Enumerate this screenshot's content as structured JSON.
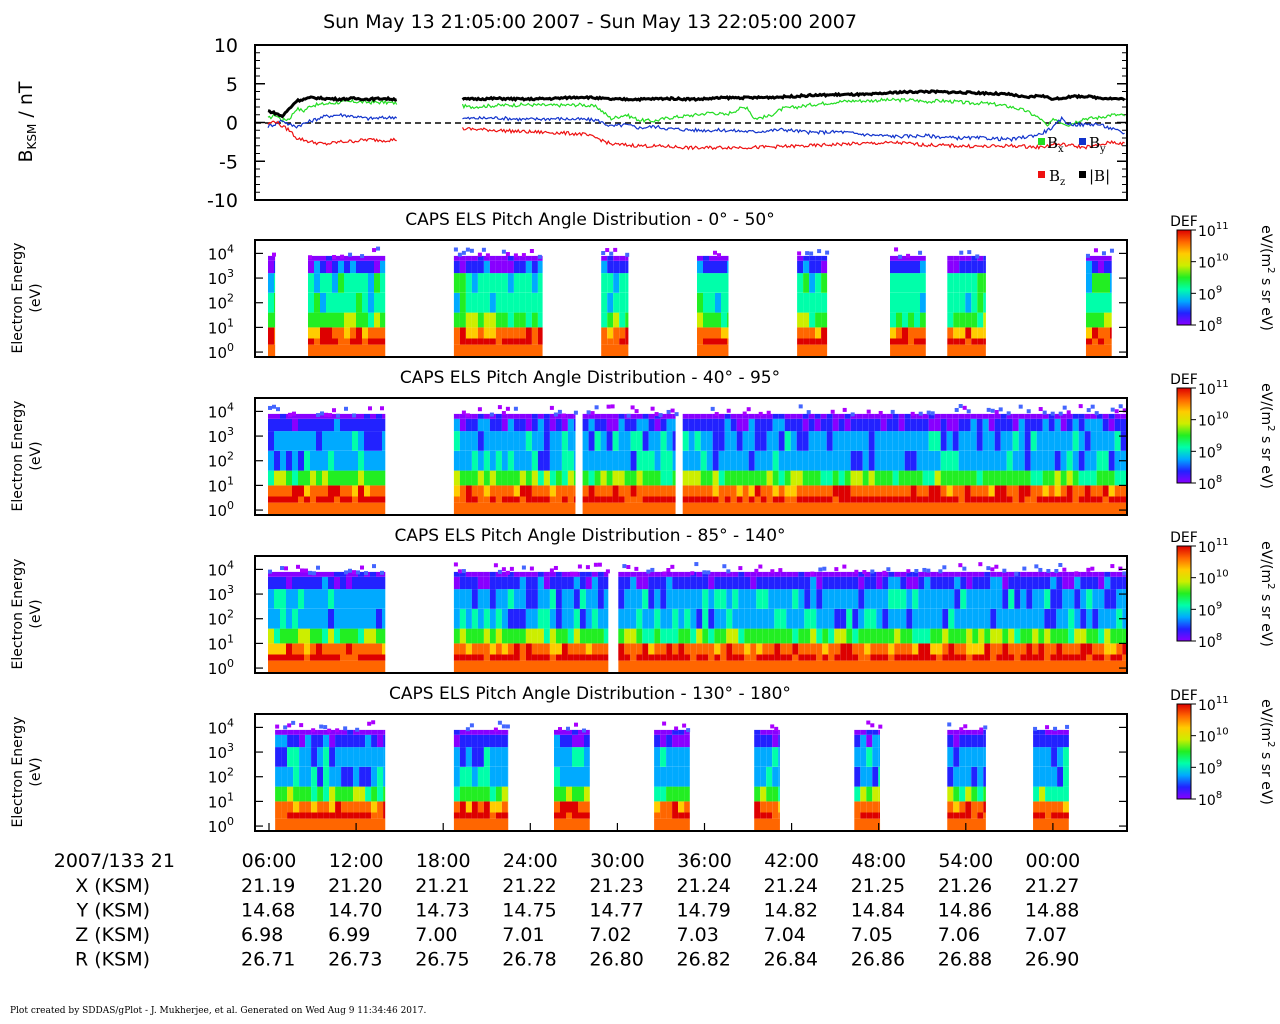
{
  "title": "Sun May 13 21:05:00 2007 - Sun May 13 22:05:00 2007",
  "footer": "Plot created by SDDAS/gPlot - J. Mukherjee, et al.  Generated on Wed Aug 9 11:34:46 2017.",
  "colors": {
    "bx": "#22dd22",
    "by": "#1133cc",
    "bz": "#ee1111",
    "bmag": "#000000",
    "colormap": [
      "#8800ff",
      "#2222ff",
      "#00aaff",
      "#00ffaa",
      "#22ee22",
      "#ccee00",
      "#ffcc00",
      "#ff6600",
      "#dd0000"
    ]
  },
  "mag_panel": {
    "ylabel_main": "B",
    "ylabel_sub": "KSM",
    "ylabel_unit": " / nT",
    "yticks": [
      "10",
      "5",
      "0",
      "-5",
      "-10"
    ],
    "legend": {
      "bx": "B",
      "bx_sub": "x",
      "by": "B",
      "by_sub": "y",
      "bz": "B",
      "bz_sub": "z",
      "bmag": "|B|"
    }
  },
  "spec_panels": [
    {
      "title": "CAPS ELS Pitch Angle Distribution - 0° - 50°",
      "ylabel1": "Electron Energy",
      "ylabel2": "(eV)"
    },
    {
      "title": "CAPS ELS Pitch Angle Distribution - 40° - 95°",
      "ylabel1": "Electron Energy",
      "ylabel2": "(eV)"
    },
    {
      "title": "CAPS ELS Pitch Angle Distribution - 85° - 140°",
      "ylabel1": "Electron Energy",
      "ylabel2": "(eV)"
    },
    {
      "title": "CAPS ELS Pitch Angle Distribution - 130° - 180°",
      "ylabel1": "Electron Energy",
      "ylabel2": "(eV)"
    }
  ],
  "spec_ytick_base": "10",
  "spec_ytick_exps": [
    "4",
    "3",
    "2",
    "1",
    "0"
  ],
  "colorbar": {
    "label": "DEF",
    "unit_a": "eV/(m",
    "unit_sup": "2",
    "unit_b": " s sr eV)",
    "tick_base": "10",
    "tick_exps": [
      "11",
      "10",
      "9",
      "8"
    ]
  },
  "time_axis": {
    "date_label": "2007/133 21",
    "ticks": [
      "06:00",
      "12:00",
      "18:00",
      "24:00",
      "30:00",
      "36:00",
      "42:00",
      "48:00",
      "54:00",
      "00:00"
    ],
    "rows": [
      {
        "label": "X (KSM)",
        "values": [
          "21.19",
          "21.20",
          "21.21",
          "21.22",
          "21.23",
          "21.24",
          "21.24",
          "21.25",
          "21.26",
          "21.27"
        ]
      },
      {
        "label": "Y (KSM)",
        "values": [
          "14.68",
          "14.70",
          "14.73",
          "14.75",
          "14.77",
          "14.79",
          "14.82",
          "14.84",
          "14.86",
          "14.88"
        ]
      },
      {
        "label": "Z (KSM)",
        "values": [
          "6.98",
          "6.99",
          "7.00",
          "7.01",
          "7.02",
          "7.03",
          "7.04",
          "7.05",
          "7.06",
          "7.07"
        ]
      },
      {
        "label": "R (KSM)",
        "values": [
          "26.71",
          "26.73",
          "26.75",
          "26.78",
          "26.80",
          "26.82",
          "26.84",
          "26.86",
          "26.88",
          "26.90"
        ]
      }
    ]
  },
  "chart_data": [
    {
      "type": "line",
      "ylabel": "BKSM / nT",
      "ylim": [
        -10,
        10
      ],
      "x_unit": "minutes after 21:05:00",
      "xlim": [
        0,
        60
      ],
      "gaps": [
        [
          9.0,
          13.5
        ]
      ],
      "series": [
        {
          "name": "Bx",
          "x": [
            0,
            0.5,
            1,
            1.5,
            2,
            2.5,
            3,
            4,
            5,
            6,
            7,
            8,
            9,
            13.5,
            14,
            16,
            18,
            20,
            22,
            23,
            24,
            25,
            26,
            27,
            28,
            29,
            30,
            31,
            32,
            33,
            33.5,
            34,
            35,
            36,
            37,
            38,
            39,
            40,
            41,
            42,
            43,
            44,
            45,
            46,
            47,
            48,
            49,
            50,
            51,
            52,
            53,
            54,
            54.5,
            55,
            55.5,
            56,
            57,
            58,
            59,
            60
          ],
          "y": [
            0.5,
            1,
            0.3,
            0.5,
            1.8,
            1.5,
            2.2,
            2.4,
            2.6,
            2.7,
            2.6,
            2.6,
            2.5,
            2.2,
            2.0,
            2.2,
            2.3,
            2.2,
            2.3,
            2.0,
            0.5,
            1.0,
            0.3,
            0.2,
            0.6,
            0.8,
            1.0,
            1.3,
            1.0,
            1.8,
            2.0,
            0.5,
            0.8,
            1.8,
            2.0,
            2.3,
            2.5,
            2.7,
            2.8,
            2.8,
            2.9,
            2.9,
            2.9,
            2.7,
            2.8,
            2.7,
            2.5,
            2.5,
            2.3,
            2.0,
            1.5,
            0.5,
            -0.5,
            0.5,
            0.0,
            -0.3,
            0.5,
            0.6,
            1.0,
            0.9
          ]
        },
        {
          "name": "By",
          "x": [
            0,
            0.5,
            1,
            1.5,
            2,
            3,
            4,
            5,
            6,
            7,
            8,
            9,
            13.5,
            16,
            18,
            20,
            22,
            23,
            24,
            25,
            26,
            27,
            28,
            30,
            32,
            34,
            36,
            38,
            40,
            42,
            44,
            46,
            48,
            50,
            52,
            54,
            55,
            55.5,
            56,
            57,
            58,
            59,
            60
          ],
          "y": [
            -0.5,
            -0.2,
            0.3,
            -0.3,
            -0.5,
            0.2,
            0.8,
            1.0,
            0.8,
            0.5,
            0.6,
            0.7,
            0.5,
            0.6,
            0.4,
            0.5,
            0.4,
            0.3,
            -0.5,
            -0.3,
            -0.7,
            -0.5,
            -0.8,
            -1.0,
            -1.0,
            -1.2,
            -0.9,
            -1.3,
            -1.2,
            -1.6,
            -1.8,
            -1.7,
            -2.0,
            -2.0,
            -2.2,
            -1.5,
            -0.5,
            0.5,
            -0.2,
            -0.3,
            -0.2,
            -0.8,
            -1.5
          ]
        },
        {
          "name": "Bz",
          "x": [
            0,
            0.5,
            1,
            1.5,
            2,
            3,
            4,
            5,
            6,
            7,
            8,
            9,
            13.5,
            16,
            18,
            20,
            22,
            23,
            24,
            25,
            26,
            28,
            30,
            32,
            34,
            36,
            38,
            40,
            42,
            44,
            46,
            48,
            50,
            52,
            54,
            55,
            56,
            57,
            58,
            59,
            60
          ],
          "y": [
            -0.2,
            0.2,
            -0.5,
            -1.0,
            -2.0,
            -2.5,
            -2.8,
            -2.5,
            -2.4,
            -2.2,
            -2.3,
            -2.2,
            -0.8,
            -1.0,
            -1.2,
            -1.3,
            -1.5,
            -2.0,
            -2.8,
            -2.9,
            -3.0,
            -3.1,
            -3.3,
            -3.2,
            -3.2,
            -3.1,
            -3.0,
            -2.8,
            -2.7,
            -2.6,
            -2.9,
            -3.0,
            -3.1,
            -3.0,
            -3.2,
            -2.8,
            -2.9,
            -3.2,
            -3.0,
            -2.5,
            -2.8
          ]
        },
        {
          "name": "|B|",
          "x": [
            0,
            0.5,
            1,
            1.5,
            2,
            3,
            4,
            5,
            6,
            7,
            8,
            9,
            13.5,
            16,
            18,
            20,
            22,
            24,
            26,
            28,
            30,
            32,
            34,
            36,
            38,
            40,
            42,
            44,
            46,
            48,
            50,
            52,
            53,
            54,
            55,
            56,
            57,
            58,
            59,
            60
          ],
          "y": [
            1.5,
            1.2,
            0.8,
            1.8,
            2.8,
            3.2,
            3.1,
            3.0,
            3.1,
            3.0,
            3.1,
            3.0,
            3.0,
            3.1,
            3.0,
            3.1,
            3.3,
            3.0,
            3.0,
            3.1,
            3.0,
            3.2,
            3.2,
            3.3,
            3.5,
            3.6,
            3.6,
            3.9,
            4.0,
            3.9,
            3.8,
            3.6,
            3.2,
            3.5,
            3.0,
            3.3,
            3.4,
            3.2,
            3.1,
            3.0
          ]
        }
      ]
    },
    {
      "type": "heatmap",
      "title": "CAPS ELS Pitch Angle Distribution - 0° - 50°",
      "ylabel": "Electron Energy (eV)",
      "y_scale": "log",
      "ylim": [
        0.6,
        20000
      ],
      "z_label": "DEF eV/(m2 s sr eV)",
      "zlim": [
        100000000.0,
        100000000000.0
      ],
      "x_unit": "minutes after 21:05:00",
      "data_intervals": [
        [
          0,
          0.5
        ],
        [
          2.8,
          8.2
        ],
        [
          13,
          19.2
        ],
        [
          23.3,
          25.2
        ],
        [
          30,
          32.2
        ],
        [
          37,
          39.1
        ],
        [
          43.5,
          46
        ],
        [
          47.5,
          50.2
        ],
        [
          57.2,
          59
        ]
      ]
    },
    {
      "type": "heatmap",
      "title": "CAPS ELS Pitch Angle Distribution - 40° - 95°",
      "ylabel": "Electron Energy (eV)",
      "y_scale": "log",
      "ylim": [
        0.6,
        20000
      ],
      "z_label": "DEF eV/(m2 s sr eV)",
      "zlim": [
        100000000.0,
        100000000000.0
      ],
      "x_unit": "minutes after 21:05:00",
      "data_intervals": [
        [
          0,
          8.2
        ],
        [
          13,
          21.5
        ],
        [
          22,
          28.5
        ],
        [
          29,
          60
        ]
      ]
    },
    {
      "type": "heatmap",
      "title": "CAPS ELS Pitch Angle Distribution - 85° - 140°",
      "ylabel": "Electron Energy (eV)",
      "y_scale": "log",
      "ylim": [
        0.6,
        20000
      ],
      "z_label": "DEF eV/(m2 s sr eV)",
      "zlim": [
        100000000.0,
        100000000000.0
      ],
      "x_unit": "minutes after 21:05:00",
      "data_intervals": [
        [
          0,
          8.2
        ],
        [
          13,
          23.8
        ],
        [
          24.5,
          60
        ]
      ]
    },
    {
      "type": "heatmap",
      "title": "CAPS ELS Pitch Angle Distribution - 130° - 180°",
      "ylabel": "Electron Energy (eV)",
      "y_scale": "log",
      "ylim": [
        0.6,
        20000
      ],
      "z_label": "DEF eV/(m2 s sr eV)",
      "zlim": [
        100000000.0,
        100000000000.0
      ],
      "x_unit": "minutes after 21:05:00",
      "data_intervals": [
        [
          0.5,
          8.2
        ],
        [
          13,
          16.8
        ],
        [
          20,
          22.5
        ],
        [
          27,
          29.5
        ],
        [
          34,
          35.8
        ],
        [
          41,
          42.8
        ],
        [
          47.5,
          50.2
        ],
        [
          53.5,
          56
        ]
      ]
    }
  ]
}
